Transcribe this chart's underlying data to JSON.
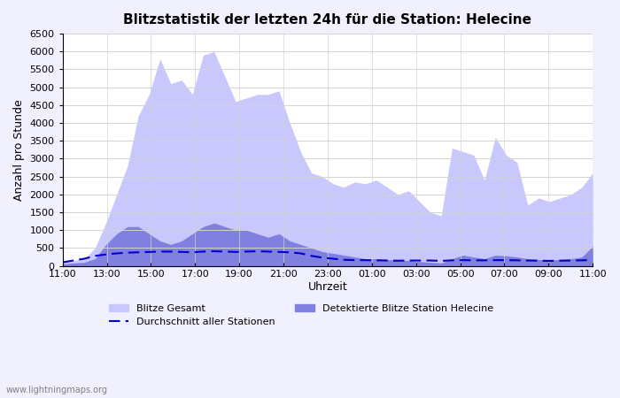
{
  "title": "Blitzstatistik der letzten 24h für die Station: Helecine",
  "xlabel": "Uhrzeit",
  "ylabel": "Anzahl pro Stunde",
  "watermark": "www.lightningmaps.org",
  "x_labels": [
    "11:00",
    "13:00",
    "15:00",
    "17:00",
    "19:00",
    "21:00",
    "23:00",
    "01:00",
    "03:00",
    "05:00",
    "07:00",
    "09:00",
    "11:00"
  ],
  "ylim": [
    0,
    6500
  ],
  "yticks": [
    0,
    500,
    1000,
    1500,
    2000,
    2500,
    3000,
    3500,
    4000,
    4500,
    5000,
    5500,
    6000,
    6500
  ],
  "color_gesamt": "#c8c8ff",
  "color_station": "#8080e0",
  "color_avg_line": "#0000cc",
  "bg_color": "#f0f0ff",
  "plot_bg": "#ffffff",
  "gesamt": [
    100,
    150,
    200,
    500,
    1200,
    2000,
    2800,
    4200,
    4800,
    5800,
    5100,
    5200,
    4800,
    5900,
    6000,
    5300,
    4600,
    4700,
    4800,
    4800,
    4900,
    4000,
    3200,
    2600,
    2500,
    2300,
    2200,
    2350,
    2300,
    2400,
    2200,
    2000,
    2100,
    1800,
    1500,
    1400,
    3300,
    3200,
    3100,
    2400,
    3600,
    3100,
    2900,
    1700,
    1900,
    1800,
    1900,
    2000,
    2200,
    2600
  ],
  "station": [
    50,
    80,
    100,
    200,
    600,
    900,
    1100,
    1100,
    900,
    700,
    600,
    700,
    900,
    1100,
    1200,
    1100,
    1000,
    1000,
    900,
    800,
    900,
    700,
    600,
    500,
    400,
    350,
    300,
    250,
    200,
    200,
    180,
    150,
    150,
    120,
    100,
    80,
    200,
    300,
    250,
    200,
    300,
    280,
    250,
    200,
    180,
    160,
    180,
    200,
    250,
    550
  ],
  "avg": [
    100,
    150,
    200,
    280,
    320,
    350,
    370,
    380,
    390,
    400,
    400,
    390,
    380,
    400,
    410,
    400,
    390,
    400,
    410,
    400,
    390,
    380,
    350,
    280,
    230,
    200,
    170,
    160,
    160,
    155,
    150,
    145,
    150,
    150,
    150,
    140,
    155,
    160,
    155,
    155,
    160,
    160,
    155,
    150,
    145,
    140,
    145,
    150,
    155,
    165
  ]
}
